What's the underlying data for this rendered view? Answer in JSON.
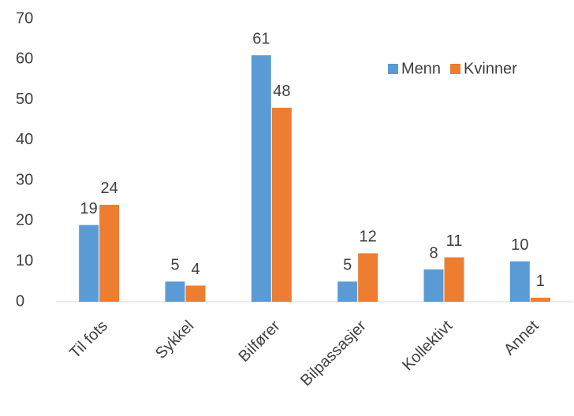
{
  "chart_data": {
    "type": "bar",
    "categories": [
      "Til fots",
      "Sykkel",
      "Bilfører",
      "Bilpassasjer",
      "Kollektivt",
      "Annet"
    ],
    "series": [
      {
        "name": "Menn",
        "color": "#5b9bd5",
        "values": [
          19,
          5,
          61,
          5,
          8,
          10
        ]
      },
      {
        "name": "Kvinner",
        "color": "#ed7d31",
        "values": [
          24,
          4,
          48,
          12,
          11,
          1
        ]
      }
    ],
    "ylim": [
      0,
      70
    ],
    "yticks": [
      0,
      10,
      20,
      30,
      40,
      50,
      60,
      70
    ],
    "grid": false,
    "legend": "top-right"
  }
}
